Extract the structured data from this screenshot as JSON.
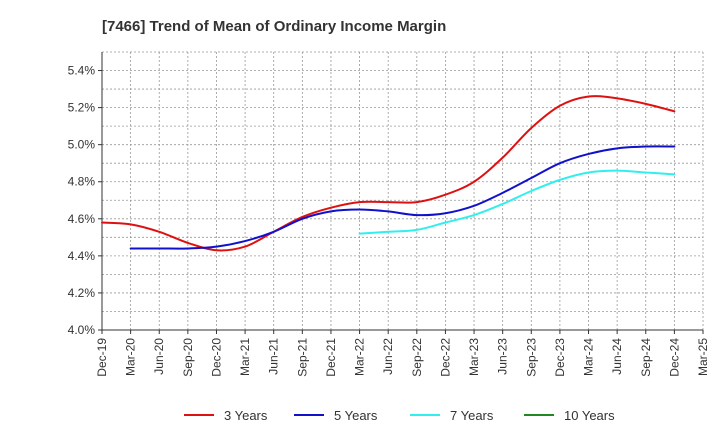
{
  "chart_data": {
    "type": "line",
    "title": "[7466]  Trend of Mean of Ordinary Income Margin",
    "xlabel": "",
    "ylabel": "",
    "x_ticks": [
      "Dec-19",
      "Mar-20",
      "Jun-20",
      "Sep-20",
      "Dec-20",
      "Mar-21",
      "Jun-21",
      "Sep-21",
      "Dec-21",
      "Mar-22",
      "Jun-22",
      "Sep-22",
      "Dec-22",
      "Mar-23",
      "Jun-23",
      "Sep-23",
      "Dec-23",
      "Mar-24",
      "Jun-24",
      "Sep-24",
      "Dec-24",
      "Mar-25"
    ],
    "y_ticks": [
      "4.0%",
      "4.2%",
      "4.4%",
      "4.6%",
      "4.8%",
      "5.0%",
      "5.2%",
      "5.4%"
    ],
    "ylim": [
      4.0,
      5.5
    ],
    "grid": true,
    "legend_position": "bottom",
    "series": [
      {
        "name": "3 Years",
        "color": "#dd1111",
        "x": [
          "Dec-19",
          "Mar-20",
          "Jun-20",
          "Sep-20",
          "Dec-20",
          "Mar-21",
          "Jun-21",
          "Sep-21",
          "Dec-21",
          "Mar-22",
          "Jun-22",
          "Sep-22",
          "Dec-22",
          "Mar-23",
          "Jun-23",
          "Sep-23",
          "Dec-23",
          "Mar-24",
          "Jun-24",
          "Sep-24",
          "Dec-24"
        ],
        "values": [
          4.58,
          4.57,
          4.53,
          4.47,
          4.43,
          4.45,
          4.53,
          4.61,
          4.66,
          4.69,
          4.69,
          4.69,
          4.73,
          4.8,
          4.93,
          5.09,
          5.21,
          5.26,
          5.25,
          5.22,
          5.18
        ]
      },
      {
        "name": "5 Years",
        "color": "#1111cc",
        "x": [
          "Mar-20",
          "Jun-20",
          "Sep-20",
          "Dec-20",
          "Mar-21",
          "Jun-21",
          "Sep-21",
          "Dec-21",
          "Mar-22",
          "Jun-22",
          "Sep-22",
          "Dec-22",
          "Mar-23",
          "Jun-23",
          "Sep-23",
          "Dec-23",
          "Mar-24",
          "Jun-24",
          "Sep-24",
          "Dec-24"
        ],
        "values": [
          4.44,
          4.44,
          4.44,
          4.45,
          4.48,
          4.53,
          4.6,
          4.64,
          4.65,
          4.64,
          4.62,
          4.63,
          4.67,
          4.74,
          4.82,
          4.9,
          4.95,
          4.98,
          4.99,
          4.99
        ]
      },
      {
        "name": "7 Years",
        "color": "#33eeee",
        "x": [
          "Mar-22",
          "Jun-22",
          "Sep-22",
          "Dec-22",
          "Mar-23",
          "Jun-23",
          "Sep-23",
          "Dec-23",
          "Mar-24",
          "Jun-24",
          "Sep-24",
          "Dec-24"
        ],
        "values": [
          4.52,
          4.53,
          4.54,
          4.58,
          4.62,
          4.68,
          4.75,
          4.81,
          4.85,
          4.86,
          4.85,
          4.84
        ]
      },
      {
        "name": "10 Years",
        "color": "#228822",
        "x": [],
        "values": []
      }
    ]
  }
}
